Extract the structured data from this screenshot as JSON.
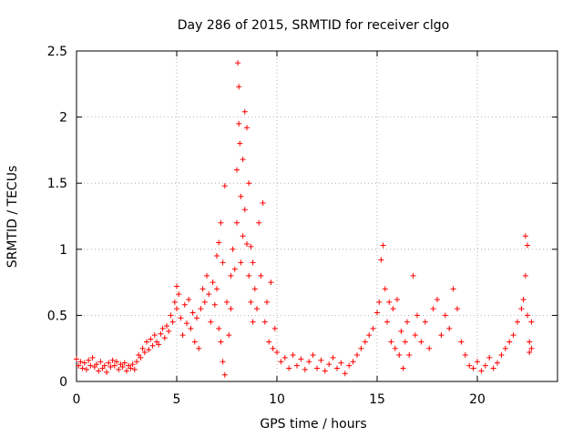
{
  "chart_data": {
    "type": "scatter",
    "title": "Day 286 of 2015, SRMTID for receiver clgo",
    "xlabel": "GPS time / hours",
    "ylabel": "SRMTID / TECUs",
    "xlim": [
      0,
      24
    ],
    "ylim": [
      0,
      2.5
    ],
    "x_ticks": [
      0,
      5,
      10,
      15,
      20
    ],
    "x_tick_labels": [
      "0",
      "5",
      "10",
      "15",
      "20"
    ],
    "y_ticks": [
      0,
      0.5,
      1,
      1.5,
      2,
      2.5
    ],
    "y_tick_labels": [
      "0",
      "0.5",
      "1",
      "1.5",
      "2",
      "2.5"
    ],
    "grid": true,
    "marker": "plus",
    "series": [
      {
        "name": "SRMTID",
        "color": "#ff0000",
        "points": [
          [
            0.0,
            0.17
          ],
          [
            0.1,
            0.12
          ],
          [
            0.2,
            0.15
          ],
          [
            0.3,
            0.1
          ],
          [
            0.4,
            0.14
          ],
          [
            0.5,
            0.09
          ],
          [
            0.6,
            0.16
          ],
          [
            0.7,
            0.12
          ],
          [
            0.8,
            0.18
          ],
          [
            0.9,
            0.11
          ],
          [
            1.0,
            0.13
          ],
          [
            1.1,
            0.08
          ],
          [
            1.2,
            0.15
          ],
          [
            1.3,
            0.1
          ],
          [
            1.4,
            0.12
          ],
          [
            1.5,
            0.07
          ],
          [
            1.6,
            0.14
          ],
          [
            1.7,
            0.11
          ],
          [
            1.8,
            0.16
          ],
          [
            1.9,
            0.12
          ],
          [
            2.0,
            0.15
          ],
          [
            2.1,
            0.09
          ],
          [
            2.2,
            0.13
          ],
          [
            2.3,
            0.11
          ],
          [
            2.4,
            0.14
          ],
          [
            2.5,
            0.08
          ],
          [
            2.6,
            0.12
          ],
          [
            2.7,
            0.1
          ],
          [
            2.8,
            0.13
          ],
          [
            2.9,
            0.09
          ],
          [
            3.0,
            0.15
          ],
          [
            3.1,
            0.2
          ],
          [
            3.2,
            0.18
          ],
          [
            3.3,
            0.25
          ],
          [
            3.4,
            0.22
          ],
          [
            3.5,
            0.3
          ],
          [
            3.6,
            0.24
          ],
          [
            3.7,
            0.32
          ],
          [
            3.8,
            0.27
          ],
          [
            3.9,
            0.35
          ],
          [
            4.0,
            0.3
          ],
          [
            4.1,
            0.28
          ],
          [
            4.2,
            0.36
          ],
          [
            4.3,
            0.4
          ],
          [
            4.4,
            0.33
          ],
          [
            4.5,
            0.42
          ],
          [
            4.6,
            0.38
          ],
          [
            4.7,
            0.5
          ],
          [
            4.8,
            0.45
          ],
          [
            4.9,
            0.6
          ],
          [
            5.0,
            0.72
          ],
          [
            5.0,
            0.55
          ],
          [
            5.1,
            0.66
          ],
          [
            5.2,
            0.48
          ],
          [
            5.3,
            0.35
          ],
          [
            5.4,
            0.58
          ],
          [
            5.5,
            0.44
          ],
          [
            5.6,
            0.62
          ],
          [
            5.7,
            0.4
          ],
          [
            5.8,
            0.52
          ],
          [
            5.9,
            0.3
          ],
          [
            6.0,
            0.48
          ],
          [
            6.1,
            0.25
          ],
          [
            6.2,
            0.55
          ],
          [
            6.3,
            0.7
          ],
          [
            6.4,
            0.6
          ],
          [
            6.5,
            0.8
          ],
          [
            6.6,
            0.66
          ],
          [
            6.7,
            0.45
          ],
          [
            6.8,
            0.75
          ],
          [
            6.9,
            0.58
          ],
          [
            7.0,
            0.95
          ],
          [
            7.0,
            0.7
          ],
          [
            7.1,
            1.05
          ],
          [
            7.1,
            0.4
          ],
          [
            7.2,
            1.2
          ],
          [
            7.2,
            0.3
          ],
          [
            7.3,
            0.9
          ],
          [
            7.3,
            0.15
          ],
          [
            7.4,
            1.48
          ],
          [
            7.4,
            0.05
          ],
          [
            7.5,
            0.6
          ],
          [
            7.6,
            0.35
          ],
          [
            7.7,
            0.8
          ],
          [
            7.7,
            0.55
          ],
          [
            7.8,
            1.0
          ],
          [
            7.9,
            0.85
          ],
          [
            8.0,
            1.6
          ],
          [
            8.0,
            1.2
          ],
          [
            8.05,
            2.41
          ],
          [
            8.1,
            2.23
          ],
          [
            8.1,
            1.95
          ],
          [
            8.15,
            1.8
          ],
          [
            8.2,
            1.4
          ],
          [
            8.2,
            0.9
          ],
          [
            8.3,
            1.1
          ],
          [
            8.3,
            1.68
          ],
          [
            8.4,
            2.04
          ],
          [
            8.4,
            1.3
          ],
          [
            8.5,
            1.92
          ],
          [
            8.5,
            1.04
          ],
          [
            8.6,
            1.5
          ],
          [
            8.6,
            0.8
          ],
          [
            8.7,
            1.02
          ],
          [
            8.7,
            0.6
          ],
          [
            8.8,
            0.9
          ],
          [
            8.8,
            0.45
          ],
          [
            8.9,
            0.7
          ],
          [
            9.0,
            0.55
          ],
          [
            9.1,
            1.2
          ],
          [
            9.2,
            0.8
          ],
          [
            9.3,
            1.35
          ],
          [
            9.4,
            0.45
          ],
          [
            9.5,
            0.6
          ],
          [
            9.6,
            0.3
          ],
          [
            9.7,
            0.75
          ],
          [
            9.8,
            0.25
          ],
          [
            9.9,
            0.4
          ],
          [
            10.0,
            0.22
          ],
          [
            10.2,
            0.15
          ],
          [
            10.4,
            0.18
          ],
          [
            10.6,
            0.1
          ],
          [
            10.8,
            0.2
          ],
          [
            11.0,
            0.12
          ],
          [
            11.2,
            0.17
          ],
          [
            11.4,
            0.09
          ],
          [
            11.6,
            0.15
          ],
          [
            11.8,
            0.2
          ],
          [
            12.0,
            0.1
          ],
          [
            12.2,
            0.16
          ],
          [
            12.4,
            0.08
          ],
          [
            12.6,
            0.13
          ],
          [
            12.8,
            0.18
          ],
          [
            13.0,
            0.1
          ],
          [
            13.2,
            0.14
          ],
          [
            13.4,
            0.06
          ],
          [
            13.6,
            0.12
          ],
          [
            13.8,
            0.15
          ],
          [
            14.0,
            0.2
          ],
          [
            14.2,
            0.25
          ],
          [
            14.4,
            0.3
          ],
          [
            14.6,
            0.35
          ],
          [
            14.8,
            0.4
          ],
          [
            15.0,
            0.52
          ],
          [
            15.1,
            0.6
          ],
          [
            15.2,
            0.92
          ],
          [
            15.3,
            1.03
          ],
          [
            15.4,
            0.7
          ],
          [
            15.5,
            0.45
          ],
          [
            15.6,
            0.6
          ],
          [
            15.7,
            0.3
          ],
          [
            15.8,
            0.55
          ],
          [
            15.9,
            0.25
          ],
          [
            16.0,
            0.62
          ],
          [
            16.1,
            0.2
          ],
          [
            16.2,
            0.38
          ],
          [
            16.3,
            0.1
          ],
          [
            16.4,
            0.3
          ],
          [
            16.5,
            0.45
          ],
          [
            16.6,
            0.2
          ],
          [
            16.8,
            0.8
          ],
          [
            16.9,
            0.35
          ],
          [
            17.0,
            0.5
          ],
          [
            17.2,
            0.3
          ],
          [
            17.4,
            0.45
          ],
          [
            17.6,
            0.25
          ],
          [
            17.8,
            0.55
          ],
          [
            18.0,
            0.62
          ],
          [
            18.2,
            0.35
          ],
          [
            18.4,
            0.5
          ],
          [
            18.6,
            0.4
          ],
          [
            18.8,
            0.7
          ],
          [
            19.0,
            0.55
          ],
          [
            19.2,
            0.3
          ],
          [
            19.4,
            0.2
          ],
          [
            19.6,
            0.12
          ],
          [
            19.8,
            0.1
          ],
          [
            20.0,
            0.15
          ],
          [
            20.2,
            0.08
          ],
          [
            20.4,
            0.12
          ],
          [
            20.6,
            0.18
          ],
          [
            20.8,
            0.1
          ],
          [
            21.0,
            0.14
          ],
          [
            21.2,
            0.2
          ],
          [
            21.4,
            0.25
          ],
          [
            21.6,
            0.3
          ],
          [
            21.8,
            0.35
          ],
          [
            22.0,
            0.45
          ],
          [
            22.2,
            0.55
          ],
          [
            22.3,
            0.62
          ],
          [
            22.4,
            0.8
          ],
          [
            22.4,
            1.1
          ],
          [
            22.5,
            1.03
          ],
          [
            22.5,
            0.5
          ],
          [
            22.6,
            0.3
          ],
          [
            22.6,
            0.22
          ],
          [
            22.7,
            0.45
          ],
          [
            22.7,
            0.25
          ]
        ]
      }
    ]
  }
}
